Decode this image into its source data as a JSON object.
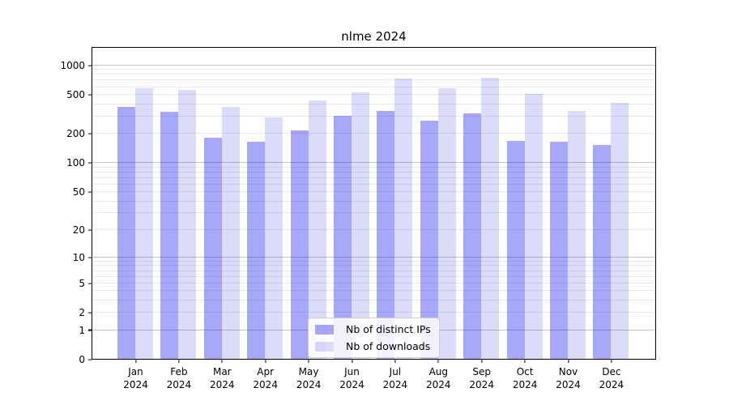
{
  "chart_data": {
    "type": "bar",
    "title": "nlme 2024",
    "scale": "log1p",
    "xlabel": "",
    "ylabel": "",
    "grid": "on",
    "legend_position": "bottom-center",
    "categories": [
      {
        "line1": "Jan",
        "line2": "2024"
      },
      {
        "line1": "Feb",
        "line2": "2024"
      },
      {
        "line1": "Mar",
        "line2": "2024"
      },
      {
        "line1": "Apr",
        "line2": "2024"
      },
      {
        "line1": "May",
        "line2": "2024"
      },
      {
        "line1": "Jun",
        "line2": "2024"
      },
      {
        "line1": "Jul",
        "line2": "2024"
      },
      {
        "line1": "Aug",
        "line2": "2024"
      },
      {
        "line1": "Sep",
        "line2": "2024"
      },
      {
        "line1": "Oct",
        "line2": "2024"
      },
      {
        "line1": "Nov",
        "line2": "2024"
      },
      {
        "line1": "Dec",
        "line2": "2024"
      }
    ],
    "series": [
      {
        "name": "Nb of distinct IPs",
        "color": "rgba(0,0,240,0.34)",
        "values": [
          375,
          337,
          182,
          165,
          218,
          307,
          342,
          272,
          323,
          169,
          165,
          153
        ]
      },
      {
        "name": "Nb of downloads",
        "color": "rgba(0,0,220,0.14)",
        "values": [
          585,
          557,
          376,
          296,
          436,
          530,
          732,
          582,
          746,
          510,
          342,
          414
        ]
      }
    ],
    "y_axis": {
      "max": 1540,
      "ticks": [
        {
          "label": "1000",
          "value": 1000
        },
        {
          "label": "500",
          "value": 500
        },
        {
          "label": "200",
          "value": 200
        },
        {
          "label": "100",
          "value": 100
        },
        {
          "label": "50",
          "value": 50
        },
        {
          "label": "20",
          "value": 20
        },
        {
          "label": "10",
          "value": 10
        },
        {
          "label": "5",
          "value": 5
        },
        {
          "label": "2",
          "value": 2
        },
        {
          "label": "1",
          "value": 1
        },
        {
          "label": "0",
          "value": 0
        }
      ],
      "major_gridlines": [
        1,
        10,
        100,
        1000
      ],
      "minor_gridlines": [
        2,
        3,
        4,
        5,
        6,
        7,
        8,
        9,
        20,
        30,
        40,
        50,
        60,
        70,
        80,
        90,
        200,
        300,
        400,
        500,
        600,
        700,
        800,
        900
      ]
    }
  }
}
